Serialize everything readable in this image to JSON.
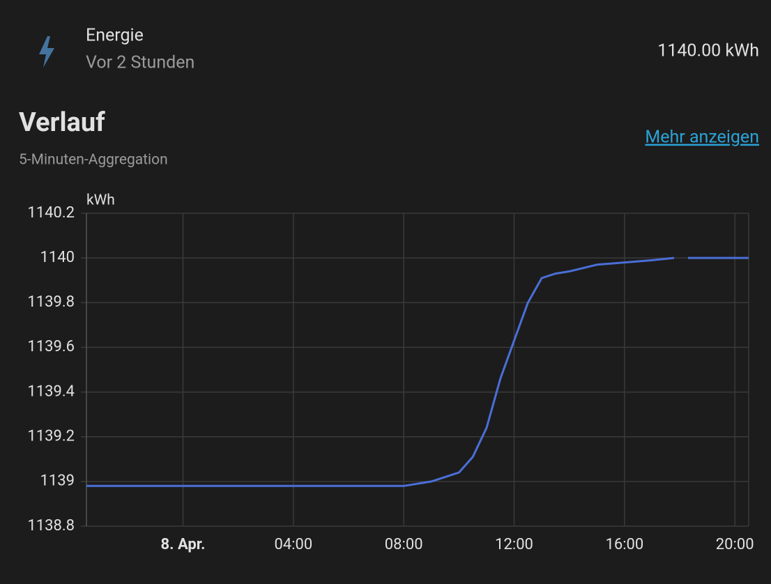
{
  "header": {
    "title": "Energie",
    "subtitle": "Vor 2 Stunden",
    "value": "1140.00 kWh"
  },
  "section": {
    "title": "Verlauf",
    "subtitle": "5-Minuten-Aggregation",
    "link": "Mehr anzeigen"
  },
  "chart_data": {
    "type": "line",
    "y_label": "kWh",
    "color": "#4a6fd8",
    "x": [
      -3.5,
      0,
      4,
      7,
      8,
      9,
      10,
      10.5,
      11,
      11.5,
      12,
      12.5,
      13,
      13.5,
      14,
      15,
      16,
      17,
      17.8,
      18.05,
      18.3,
      20.5
    ],
    "values": [
      1138.98,
      1138.98,
      1138.98,
      1138.98,
      1138.98,
      1139.0,
      1139.04,
      1139.11,
      1139.24,
      1139.46,
      1139.63,
      1139.8,
      1139.91,
      1139.93,
      1139.94,
      1139.97,
      1139.98,
      1139.99,
      1140.0,
      null,
      1140.0,
      1140.0
    ],
    "xlim": [
      -3.5,
      20.5
    ],
    "xticks": [
      {
        "value": 0,
        "label": "8. Apr."
      },
      {
        "value": 4,
        "label": "04:00"
      },
      {
        "value": 8,
        "label": "08:00"
      },
      {
        "value": 12,
        "label": "12:00"
      },
      {
        "value": 16,
        "label": "16:00"
      },
      {
        "value": 20,
        "label": "20:00"
      }
    ],
    "ylim": [
      1138.8,
      1140.2
    ],
    "yticks": [
      1138.8,
      1139,
      1139.2,
      1139.4,
      1139.6,
      1139.8,
      1140,
      1140.2
    ],
    "grid": true
  }
}
